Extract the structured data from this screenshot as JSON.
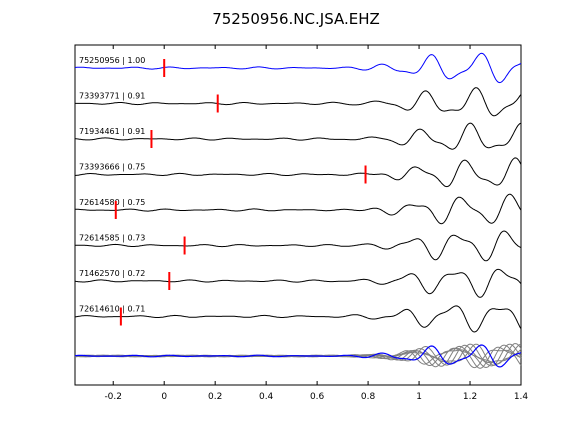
{
  "chart_data": {
    "type": "line",
    "title": "75250956.NC.JSA.EHZ",
    "xlabel": "",
    "ylabel": "",
    "xlim": [
      -0.35,
      1.4
    ],
    "xticks": [
      -0.2,
      0,
      0.2,
      0.4,
      0.6,
      0.8,
      1,
      1.2,
      1.4
    ],
    "xtick_labels": [
      "-0.2",
      "0",
      "0.2",
      "0.4",
      "0.6",
      "0.8",
      "1",
      "1.2",
      "1.4"
    ],
    "grid": false,
    "traces": [
      {
        "label": "75250956 | 1.00",
        "pick": 0.0,
        "color": "#0000ff"
      },
      {
        "label": "73393771 | 0.91",
        "pick": 0.21,
        "color": "#000000"
      },
      {
        "label": "71934461 | 0.91",
        "pick": -0.05,
        "color": "#000000"
      },
      {
        "label": "73393666 | 0.75",
        "pick": 0.79,
        "color": "#000000"
      },
      {
        "label": "72614580 | 0.75",
        "pick": -0.19,
        "color": "#000000"
      },
      {
        "label": "72614585 | 0.73",
        "pick": 0.08,
        "color": "#000000"
      },
      {
        "label": "71462570 | 0.72",
        "pick": 0.02,
        "color": "#000000"
      },
      {
        "label": "72614610 | 0.71",
        "pick": -0.17,
        "color": "#000000"
      }
    ],
    "stack": {
      "colors": {
        "main": "#0000ff",
        "others": "#808080"
      }
    },
    "pick_color": "#ff0000"
  }
}
